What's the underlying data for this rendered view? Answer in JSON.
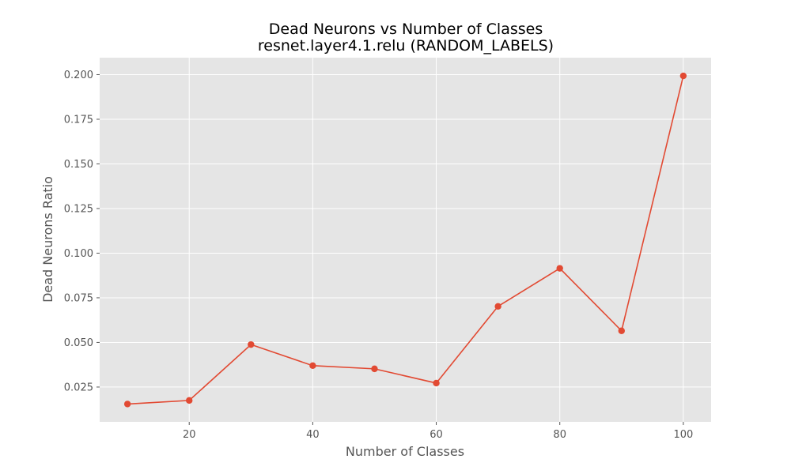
{
  "chart_data": {
    "type": "line",
    "title": "Dead Neurons vs Number of Classes",
    "subtitle": "resnet.layer4.1.relu (RANDOM_LABELS)",
    "xlabel": "Number of Classes",
    "ylabel": "Dead Neurons Ratio",
    "xlim": [
      5.5,
      104.5
    ],
    "ylim": [
      0.0055,
      0.2095
    ],
    "x_ticks": [
      20,
      40,
      60,
      80,
      100
    ],
    "x_tick_labels": [
      "20",
      "40",
      "60",
      "80",
      "100"
    ],
    "y_ticks": [
      0.025,
      0.05,
      0.075,
      0.1,
      0.125,
      0.15,
      0.175,
      0.2
    ],
    "y_tick_labels": [
      "0.025",
      "0.050",
      "0.075",
      "0.100",
      "0.125",
      "0.150",
      "0.175",
      "0.200"
    ],
    "grid": true,
    "series": [
      {
        "x": [
          10,
          20,
          30,
          40,
          50,
          60,
          70,
          80,
          90,
          100
        ],
        "y": [
          0.0155,
          0.0175,
          0.0488,
          0.037,
          0.0352,
          0.0272,
          0.0702,
          0.0915,
          0.0565,
          0.1993
        ],
        "color": "#E24A33",
        "marker": "circle"
      }
    ],
    "colors": {
      "plot_background": "#E5E5E5",
      "grid": "#FFFFFF"
    }
  }
}
